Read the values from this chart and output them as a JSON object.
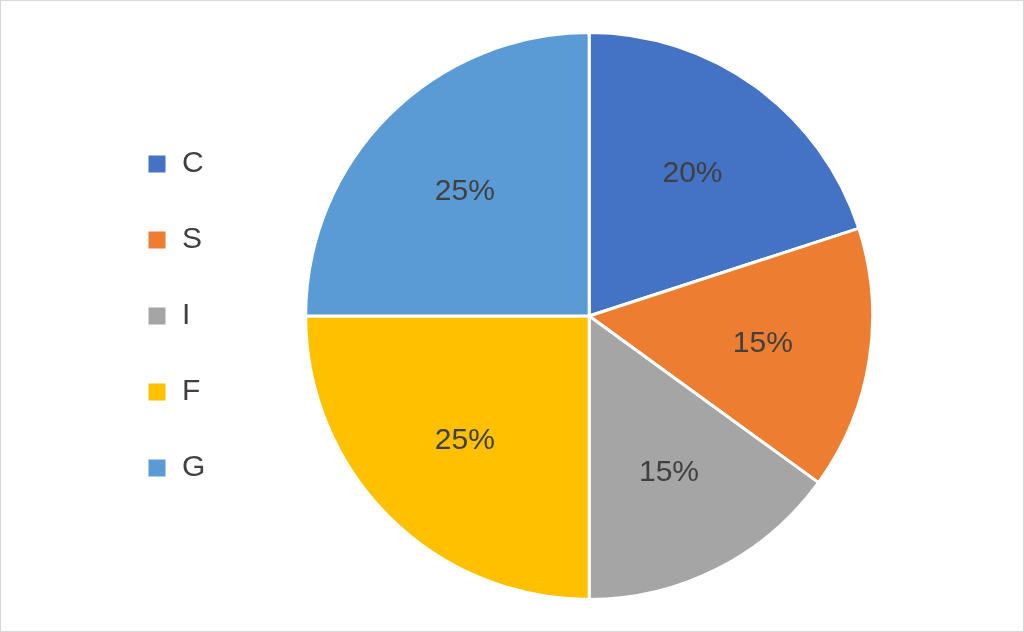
{
  "chart_data": {
    "type": "pie",
    "categories": [
      "C",
      "S",
      "I",
      "F",
      "G"
    ],
    "values": [
      20,
      15,
      15,
      25,
      25
    ],
    "value_labels": [
      "20%",
      "15%",
      "15%",
      "25%",
      "25%"
    ],
    "colors": [
      "#4472c4",
      "#ed7d31",
      "#a5a5a5",
      "#ffc000",
      "#5b9bd5"
    ],
    "legend": "left"
  }
}
